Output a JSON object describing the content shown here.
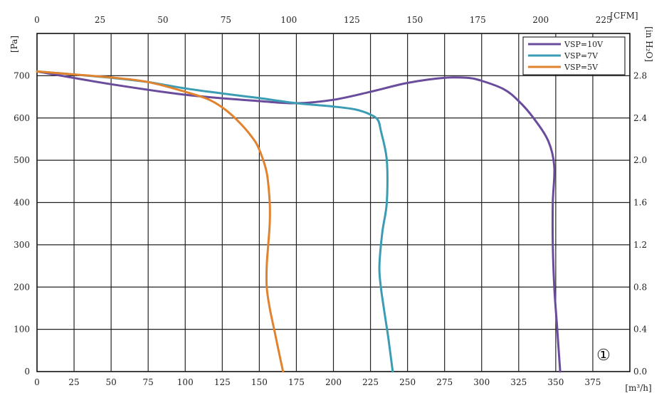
{
  "chart_data": {
    "type": "line",
    "title": "",
    "x_bottom": {
      "unit": "[m³/h]",
      "ticks": [
        0,
        25,
        50,
        75,
        100,
        125,
        150,
        175,
        200,
        225,
        250,
        275,
        300,
        325,
        350,
        375
      ],
      "range": [
        0,
        400
      ]
    },
    "x_top": {
      "unit": "[CFM]",
      "ticks": [
        0,
        25,
        50,
        75,
        100,
        125,
        150,
        175,
        200,
        225
      ],
      "range": [
        0,
        235.4
      ]
    },
    "y_left": {
      "unit": "[Pa]",
      "ticks": [
        0,
        100,
        200,
        300,
        400,
        500,
        600,
        700
      ],
      "range": [
        0,
        800
      ]
    },
    "y_right": {
      "unit": "[in H₂O]",
      "ticks": [
        "0.0",
        "0.4",
        "0.8",
        "1.2",
        "1.6",
        "2.0",
        "2.4",
        "2.8"
      ]
    },
    "grid": true,
    "legend_position": "top-right",
    "badge": "①",
    "series": [
      {
        "name": "VSP=10V",
        "color": "#6a4c9c",
        "x": [
          0,
          50,
          100,
          150,
          175,
          200,
          225,
          250,
          275,
          290,
          300,
          315,
          325,
          335,
          345,
          349,
          348,
          348,
          349,
          351,
          353
        ],
        "y": [
          710,
          680,
          655,
          640,
          635,
          643,
          662,
          683,
          695,
          695,
          688,
          668,
          640,
          600,
          545,
          485,
          400,
          300,
          200,
          100,
          0
        ]
      },
      {
        "name": "VSP=7V",
        "color": "#3b9db3",
        "x": [
          0,
          25,
          50,
          75,
          100,
          125,
          150,
          175,
          200,
          215,
          225,
          230,
          232,
          236,
          236,
          233,
          231,
          232,
          234,
          237,
          240
        ],
        "y": [
          710,
          703,
          695,
          685,
          670,
          658,
          647,
          635,
          627,
          620,
          608,
          595,
          570,
          500,
          400,
          330,
          250,
          200,
          150,
          80,
          0
        ]
      },
      {
        "name": "VSP=5V",
        "color": "#e0822e",
        "x": [
          0,
          25,
          50,
          75,
          100,
          115,
          125,
          135,
          145,
          150,
          155,
          157,
          157,
          156,
          155,
          155,
          157,
          160,
          163,
          166
        ],
        "y": [
          710,
          703,
          696,
          685,
          662,
          645,
          625,
          595,
          555,
          525,
          470,
          400,
          350,
          300,
          250,
          200,
          150,
          100,
          50,
          0
        ]
      }
    ]
  }
}
